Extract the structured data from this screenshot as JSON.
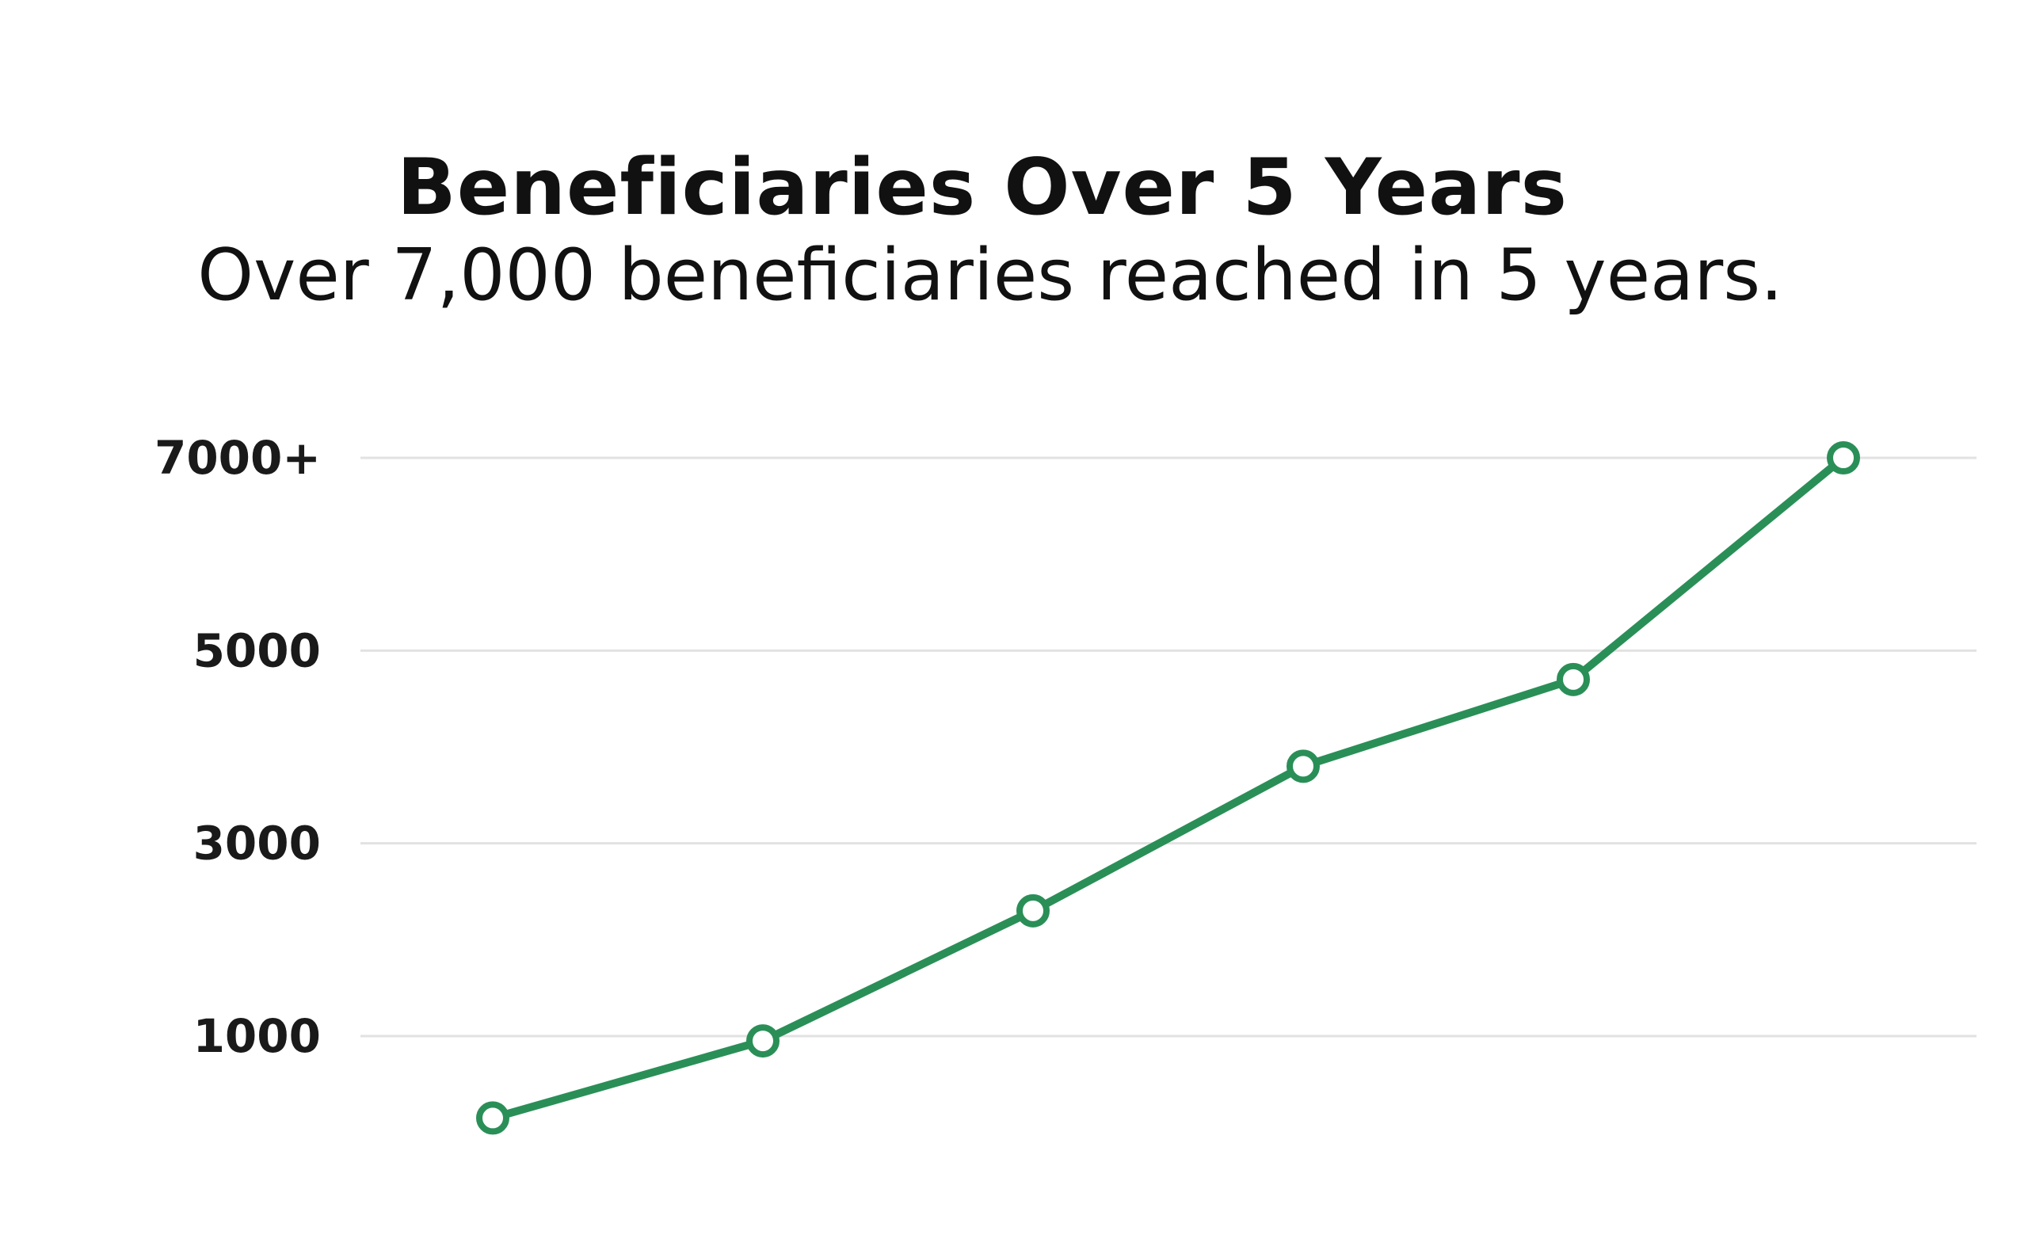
{
  "chart_data": {
    "type": "line",
    "title": "Beneficiaries Over 5 Years",
    "subtitle": "Over 7,000 beneficiaries reached in 5 years.",
    "xlabel": "",
    "ylabel": "",
    "x": [
      1,
      2,
      3,
      4,
      5,
      6
    ],
    "series": [
      {
        "values": [
          150,
          950,
          2300,
          3800,
          4700,
          7000
        ]
      }
    ],
    "y_ticks": [
      {
        "value": 1000,
        "label": "1000"
      },
      {
        "value": 3000,
        "label": "3000"
      },
      {
        "value": 5000,
        "label": "5000"
      },
      {
        "value": 7000,
        "label": "7000+"
      }
    ],
    "ylim": [
      0,
      7000
    ],
    "grid": true,
    "legend": "none",
    "colors": {
      "line": "#2a8f57",
      "grid": "#e2e2e2",
      "text": "#111111"
    }
  }
}
